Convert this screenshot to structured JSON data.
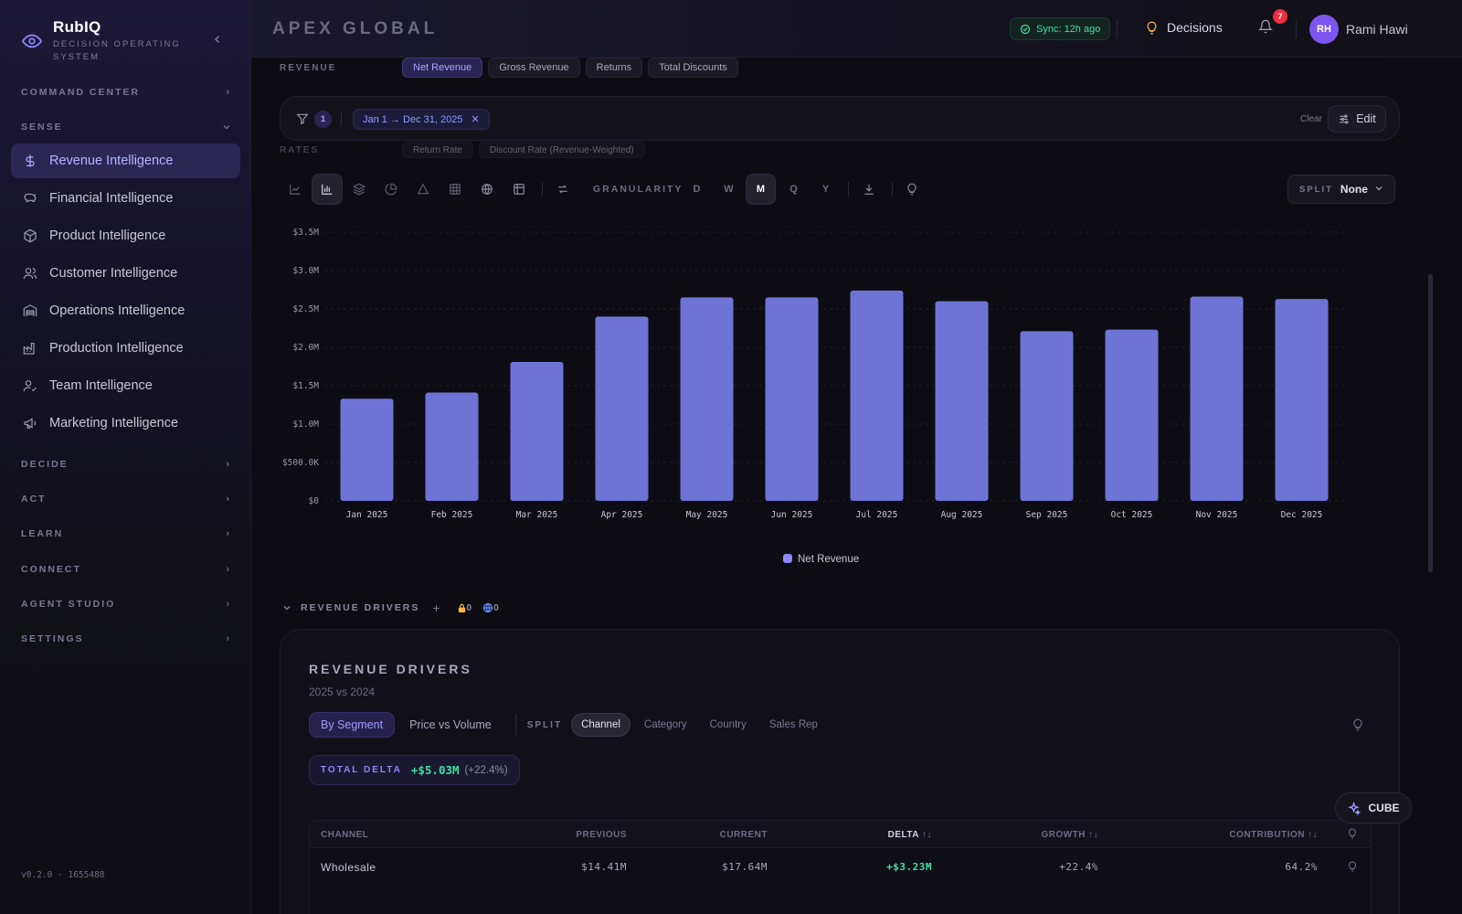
{
  "brand": {
    "name": "RubIQ",
    "subtitle": "DECISION OPERATING SYSTEM"
  },
  "sidebar": {
    "sections_top": [
      {
        "label": "COMMAND CENTER"
      },
      {
        "label": "SENSE"
      }
    ],
    "items": [
      {
        "label": "Revenue Intelligence",
        "icon": "dollar-icon",
        "active": true
      },
      {
        "label": "Financial Intelligence",
        "icon": "piggy-bank-icon"
      },
      {
        "label": "Product Intelligence",
        "icon": "box-icon"
      },
      {
        "label": "Customer Intelligence",
        "icon": "users-icon"
      },
      {
        "label": "Operations Intelligence",
        "icon": "warehouse-icon"
      },
      {
        "label": "Production Intelligence",
        "icon": "factory-icon"
      },
      {
        "label": "Team Intelligence",
        "icon": "user-check-icon"
      },
      {
        "label": "Marketing Intelligence",
        "icon": "megaphone-icon"
      }
    ],
    "sections_bottom": [
      {
        "label": "DECIDE"
      },
      {
        "label": "ACT"
      },
      {
        "label": "LEARN"
      },
      {
        "label": "CONNECT"
      },
      {
        "label": "AGENT STUDIO"
      },
      {
        "label": "SETTINGS"
      }
    ],
    "version": "v0.2.0 · 1655488"
  },
  "header": {
    "org": "APEX GLOBAL",
    "sync": "Sync: 12h ago",
    "decisions": "Decisions",
    "notifications": "7",
    "avatar_initials": "RH",
    "user": "Rami Hawi"
  },
  "metrics": {
    "label": "REVENUE",
    "chips": [
      {
        "label": "Net Revenue",
        "active": true
      },
      {
        "label": "Gross Revenue"
      },
      {
        "label": "Returns"
      },
      {
        "label": "Total Discounts"
      }
    ],
    "rates_label": "RATES",
    "rates_chips": [
      {
        "label": "Return Rate"
      },
      {
        "label": "Discount Rate (Revenue-Weighted)"
      }
    ]
  },
  "filter": {
    "count": "1",
    "date_range": "Jan 1 → Dec 31, 2025",
    "clear": "Clear",
    "edit": "Edit"
  },
  "toolbar": {
    "granularity_label": "GRANULARITY",
    "granularity": [
      {
        "label": "D"
      },
      {
        "label": "W"
      },
      {
        "label": "M",
        "active": true
      },
      {
        "label": "Q"
      },
      {
        "label": "Y"
      }
    ],
    "split_label": "SPLIT",
    "split_value": "None"
  },
  "chart_data": {
    "type": "bar",
    "categories": [
      "Jan 2025",
      "Feb 2025",
      "Mar 2025",
      "Apr 2025",
      "May 2025",
      "Jun 2025",
      "Jul 2025",
      "Aug 2025",
      "Sep 2025",
      "Oct 2025",
      "Nov 2025",
      "Dec 2025"
    ],
    "series": [
      {
        "name": "Net Revenue",
        "values": [
          1.33,
          1.41,
          1.81,
          2.4,
          2.65,
          2.65,
          2.74,
          2.6,
          2.21,
          2.23,
          2.66,
          2.63
        ],
        "color": "#6e74d6"
      }
    ],
    "y_ticks": [
      "$0",
      "$500.0K",
      "$1.0M",
      "$1.5M",
      "$2.0M",
      "$2.5M",
      "$3.0M",
      "$3.5M"
    ],
    "y_unit": "$M",
    "ylim": [
      0,
      3.5
    ],
    "grid": true,
    "legend_position": "bottom-center"
  },
  "drivers": {
    "section_label": "REVENUE DRIVERS",
    "locked_count": "0",
    "global_count": "0",
    "title": "REVENUE DRIVERS",
    "subtitle": "2025 vs 2024",
    "tabs": [
      {
        "label": "By Segment",
        "active": true
      },
      {
        "label": "Price vs Volume"
      }
    ],
    "split_label": "SPLIT",
    "splits": [
      {
        "label": "Channel",
        "active": true
      },
      {
        "label": "Category"
      },
      {
        "label": "Country"
      },
      {
        "label": "Sales Rep"
      }
    ],
    "total_delta_label": "TOTAL DELTA",
    "total_delta_value": "+$5.03M",
    "total_delta_pct": "(+22.4%)",
    "table": {
      "columns": [
        "CHANNEL",
        "PREVIOUS",
        "CURRENT",
        "DELTA",
        "GROWTH",
        "CONTRIBUTION"
      ],
      "sort_glyph": "↑↓",
      "rows": [
        {
          "channel": "Wholesale",
          "previous": "$14.41M",
          "current": "$17.64M",
          "delta": "+$3.23M",
          "growth": "+22.4%",
          "contribution": "64.2%"
        }
      ]
    }
  },
  "cube": {
    "label": "CUBE"
  }
}
